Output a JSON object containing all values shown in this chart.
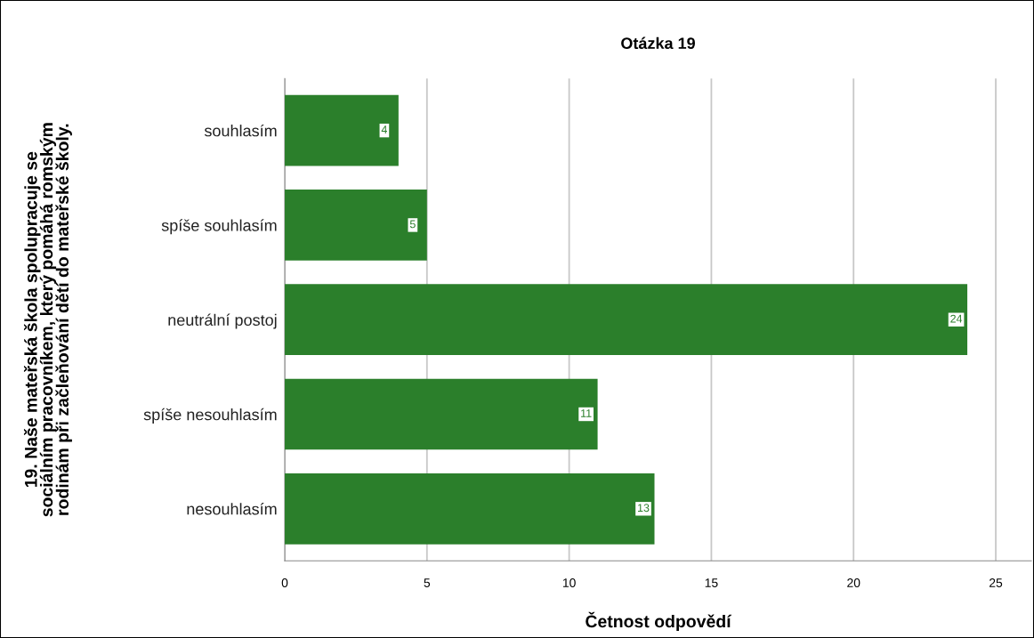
{
  "chart_data": {
    "type": "bar",
    "orientation": "horizontal",
    "title": "Otázka 19",
    "xlabel": "Četnost odpovědí",
    "ylabel": "19. Naše mateřská škola spolupracuje se\nsociálním pracovníkem, který pomáhá romským\nrodinám při začleňování dětí do mateřské školy.",
    "categories": [
      "souhlasím",
      "spíše souhlasím",
      "neutrální postoj",
      "spíše nesouhlasím",
      "nesouhlasím"
    ],
    "values": [
      4,
      5,
      24,
      11,
      13
    ],
    "color": "#2b7f2b",
    "xlim": [
      0,
      26.25
    ],
    "xticks": [
      0,
      5,
      10,
      15,
      20,
      25
    ],
    "grid": "x",
    "data_labels": true
  }
}
